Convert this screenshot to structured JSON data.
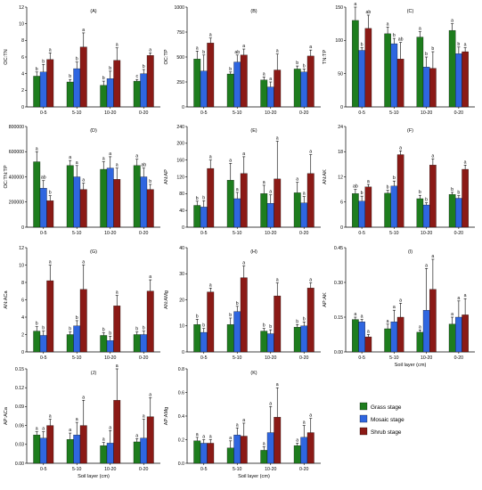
{
  "chart_data": {
    "type": "bar",
    "series_meta": [
      {
        "name": "Grass stage",
        "color": "#1e7d1e"
      },
      {
        "name": "Mosaic stage",
        "color": "#2f66e0"
      },
      {
        "name": "Shrub stage",
        "color": "#8b1a16"
      }
    ],
    "categories": [
      "0-5",
      "5-10",
      "10-20",
      "0-20"
    ],
    "xlabel": "Soil layer (cm)",
    "panels": [
      {
        "label": "(A)",
        "ylabel": "OC:TN",
        "ylim": [
          0,
          12
        ],
        "ticks": [
          "0",
          "2",
          "4",
          "6",
          "8",
          "10",
          "12"
        ],
        "values": [
          [
            3.7,
            3.0,
            2.6,
            3.1
          ],
          [
            4.2,
            4.6,
            3.4,
            4.0
          ],
          [
            5.7,
            7.2,
            5.6,
            6.2
          ]
        ],
        "errors": [
          [
            0.5,
            0.3,
            0.5,
            0.2
          ],
          [
            0.9,
            0.8,
            0.9,
            0.5
          ],
          [
            0.8,
            1.7,
            1.5,
            0.3
          ]
        ],
        "letters": [
          [
            "b",
            "b",
            "b",
            "c"
          ],
          [
            "b",
            "b",
            "b",
            "b"
          ],
          [
            "a",
            "a",
            "a",
            "a"
          ]
        ],
        "letters_shown": [
          "ab",
          "a",
          "ab",
          "a"
        ],
        "xlabel_shown": false
      },
      {
        "label": "(B)",
        "ylabel": "OC:TP",
        "ylim": [
          0,
          1000
        ],
        "ticks": [
          "0",
          "250",
          "500",
          "750",
          "1000"
        ],
        "values": [
          [
            480,
            330,
            270,
            380
          ],
          [
            360,
            450,
            200,
            350
          ],
          [
            640,
            520,
            370,
            510
          ]
        ],
        "errors": [
          [
            80,
            20,
            30,
            30
          ],
          [
            160,
            70,
            50,
            30
          ],
          [
            50,
            60,
            160,
            60
          ]
        ],
        "letters": [
          [
            "a",
            "b",
            "a",
            "b"
          ],
          [
            "b",
            "ab",
            "a",
            "b"
          ],
          [
            "a",
            "a",
            "a",
            "a"
          ]
        ],
        "xlabel_shown": false
      },
      {
        "label": "(C)",
        "ylabel": "TN:TP",
        "ylim": [
          0,
          150
        ],
        "ticks": [
          "0",
          "50",
          "100",
          "150"
        ],
        "values": [
          [
            130,
            110,
            105,
            115
          ],
          [
            85,
            95,
            60,
            80
          ],
          [
            118,
            72,
            58,
            83
          ]
        ],
        "errors": [
          [
            20,
            10,
            8,
            10
          ],
          [
            4,
            8,
            15,
            10
          ],
          [
            20,
            25,
            25,
            6
          ]
        ],
        "letters": [
          [
            "a",
            "a",
            "a",
            "a"
          ],
          [
            "b",
            "b",
            "b",
            "b"
          ],
          [
            "ab",
            "ab",
            "b",
            "a"
          ]
        ],
        "xlabel_shown": false
      },
      {
        "label": "(D)",
        "ylabel": "OC:TN:TP",
        "ylim": [
          0,
          800000
        ],
        "ticks": [
          "0",
          "200000",
          "400000",
          "600000",
          "800000"
        ],
        "values": [
          [
            520000,
            490000,
            460000,
            490000
          ],
          [
            310000,
            400000,
            470000,
            400000
          ],
          [
            210000,
            300000,
            380000,
            300000
          ]
        ],
        "errors": [
          [
            80000,
            40000,
            60000,
            50000
          ],
          [
            60000,
            90000,
            90000,
            70000
          ],
          [
            40000,
            50000,
            90000,
            40000
          ]
        ],
        "letters": [
          [
            "a",
            "a",
            "a",
            "a"
          ],
          [
            "ab",
            "a",
            "a",
            "ab"
          ],
          [
            "b",
            "a",
            "a",
            "b"
          ]
        ],
        "xlabel_shown": false
      },
      {
        "label": "(E)",
        "ylabel": "AN:AP",
        "ylim": [
          0,
          240
        ],
        "ticks": [
          "0",
          "40",
          "80",
          "120",
          "160",
          "200",
          "240"
        ],
        "values": [
          [
            52,
            112,
            80,
            82
          ],
          [
            48,
            68,
            57,
            58
          ],
          [
            140,
            128,
            115,
            128
          ]
        ],
        "errors": [
          [
            10,
            40,
            20,
            25
          ],
          [
            15,
            15,
            20,
            15
          ],
          [
            20,
            40,
            90,
            45
          ]
        ],
        "letters": [
          [
            "b",
            "a",
            "a",
            "a"
          ],
          [
            "b",
            "a",
            "a",
            "a"
          ],
          [
            "a",
            "a",
            "a",
            "a"
          ]
        ],
        "xlabel_shown": false
      },
      {
        "label": "(F)",
        "ylabel": "AN:AK",
        "ylim": [
          0,
          24
        ],
        "ticks": [
          "0",
          "6",
          "12",
          "18",
          "24"
        ],
        "values": [
          [
            8,
            8.1,
            6.8,
            7.8
          ],
          [
            6.2,
            9.8,
            5.3,
            6.9
          ],
          [
            9.6,
            17.3,
            14.8,
            13.8
          ]
        ],
        "errors": [
          [
            1,
            0.7,
            0.8,
            0.5
          ],
          [
            1.2,
            1.2,
            0.5,
            0.6
          ],
          [
            0.6,
            0.9,
            1.5,
            1.0
          ]
        ],
        "letters": [
          [
            "ab",
            "b",
            "b",
            "b"
          ],
          [
            "b",
            "b",
            "b",
            "b"
          ],
          [
            "a",
            "a",
            "a",
            "a"
          ]
        ],
        "xlabel_shown": false
      },
      {
        "label": "(G)",
        "ylabel": "AN:ACa",
        "ylim": [
          0,
          12
        ],
        "ticks": [
          "0",
          "2",
          "4",
          "6",
          "8",
          "10",
          "12"
        ],
        "values": [
          [
            2.4,
            2.0,
            1.9,
            2.0
          ],
          [
            1.9,
            3.0,
            1.3,
            2.0
          ],
          [
            8.2,
            7.2,
            5.3,
            7.0
          ]
        ],
        "errors": [
          [
            0.5,
            0.3,
            0.3,
            0.3
          ],
          [
            0.5,
            0.6,
            0.5,
            0.4
          ],
          [
            1.8,
            2.8,
            1.2,
            1.3
          ]
        ],
        "letters": [
          [
            "b",
            "b",
            "b",
            "b"
          ],
          [
            "b",
            "b",
            "b",
            "b"
          ],
          [
            "a",
            "a",
            "a",
            "a"
          ]
        ],
        "xlabel_shown": false
      },
      {
        "label": "(H)",
        "ylabel": "AN:AMg",
        "ylim": [
          0,
          40
        ],
        "ticks": [
          "0",
          "10",
          "20",
          "30",
          "40"
        ],
        "values": [
          [
            10.5,
            10.5,
            8,
            9.5
          ],
          [
            7.5,
            15.5,
            7,
            10
          ],
          [
            23,
            28.5,
            21.5,
            24.5
          ]
        ],
        "errors": [
          [
            2,
            2.5,
            1,
            1
          ],
          [
            1.5,
            2,
            1.5,
            1.5
          ],
          [
            1.5,
            4.5,
            5,
            2
          ]
        ],
        "letters": [
          [
            "b",
            "b",
            "b",
            "b"
          ],
          [
            "b",
            "b",
            "b",
            "b"
          ],
          [
            "a",
            "a",
            "a",
            "a"
          ]
        ],
        "xlabel_shown": false
      },
      {
        "label": "(I)",
        "ylabel": "AP:AK",
        "ylim": [
          0,
          0.45
        ],
        "ticks": [
          "0.00",
          "0.15",
          "0.30",
          "0.45"
        ],
        "values": [
          [
            0.14,
            0.1,
            0.085,
            0.12
          ],
          [
            0.13,
            0.13,
            0.18,
            0.15
          ],
          [
            0.065,
            0.15,
            0.27,
            0.16
          ]
        ],
        "errors": [
          [
            0.01,
            0.02,
            0.01,
            0.03
          ],
          [
            0.01,
            0.05,
            0.18,
            0.07
          ],
          [
            0.01,
            0.06,
            0.13,
            0.07
          ]
        ],
        "letters": [
          [
            "a",
            "a",
            "a",
            "a"
          ],
          [
            "a",
            "a",
            "a",
            "a"
          ],
          [
            "a",
            "a",
            "a",
            "a"
          ]
        ],
        "xlabel_shown": true
      },
      {
        "label": "(J)",
        "ylabel": "AP:ACa",
        "ylim": [
          0,
          0.15
        ],
        "ticks": [
          "0.00",
          "0.03",
          "0.06",
          "0.09",
          "0.12",
          "0.15"
        ],
        "values": [
          [
            0.045,
            0.038,
            0.028,
            0.034
          ],
          [
            0.04,
            0.045,
            0.032,
            0.04
          ],
          [
            0.06,
            0.06,
            0.1,
            0.074
          ]
        ],
        "errors": [
          [
            0.005,
            0.01,
            0.005,
            0.005
          ],
          [
            0.01,
            0.02,
            0.02,
            0.03
          ],
          [
            0.01,
            0.04,
            0.05,
            0.03
          ]
        ],
        "letters": [
          [
            "a",
            "a",
            "a",
            "a"
          ],
          [
            "a",
            "a",
            "a",
            "a"
          ],
          [
            "a",
            "a",
            "a",
            "a"
          ]
        ],
        "xlabel_shown": true
      },
      {
        "label": "(K)",
        "ylabel": "AP:AMg",
        "ylim": [
          0,
          0.8
        ],
        "ticks": [
          "0.0",
          "0.2",
          "0.4",
          "0.6",
          "0.8"
        ],
        "values": [
          [
            0.19,
            0.13,
            0.11,
            0.15
          ],
          [
            0.17,
            0.24,
            0.26,
            0.22
          ],
          [
            0.17,
            0.23,
            0.39,
            0.26
          ]
        ],
        "errors": [
          [
            0.03,
            0.06,
            0.03,
            0.02
          ],
          [
            0.03,
            0.06,
            0.22,
            0.1
          ],
          [
            0.03,
            0.11,
            0.25,
            0.12
          ]
        ],
        "letters": [
          [
            "a",
            "a",
            "a",
            "a"
          ],
          [
            "a",
            "a",
            "a",
            "a"
          ],
          [
            "a",
            "a",
            "a",
            "a"
          ]
        ],
        "xlabel_shown": true
      }
    ]
  }
}
